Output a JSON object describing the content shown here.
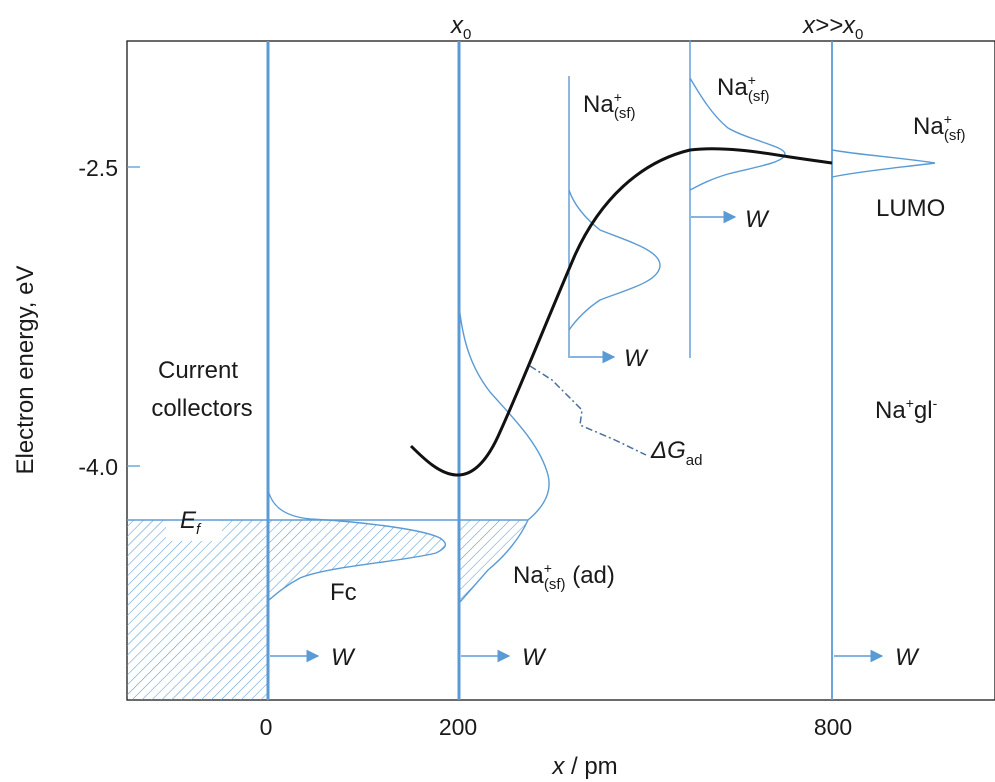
{
  "diagram": {
    "y_axis_label": "Electron energy, eV",
    "x_axis_label": {
      "main": "x",
      "rest": " / pm"
    },
    "y_ticks": [
      "-2.5",
      "-4.0"
    ],
    "x_ticks": [
      "0",
      "200",
      "800"
    ],
    "top_labels": {
      "x0": {
        "main": "x",
        "sub": "0"
      },
      "far": {
        "main": "x>>x",
        "sub": "0"
      }
    },
    "labels": {
      "current_collectors_line1": "Current",
      "current_collectors_line2": "collectors",
      "fermi": {
        "main": "E",
        "sub": "f"
      },
      "fc": "Fc",
      "na_ad": {
        "main": "Na",
        "sup": "+",
        "sub": "(sf)",
        "rest": " (ad)"
      },
      "na_sf_1": {
        "main": "Na",
        "sup": "+",
        "sub": "(sf)"
      },
      "na_sf_2": {
        "main": "Na",
        "sup": "+",
        "sub": "(sf)"
      },
      "na_sf_3": {
        "main": "Na",
        "sup": "+",
        "sub": "(sf)"
      },
      "lumo": "LUMO",
      "na_gl": {
        "main": "Na",
        "sup1": "+",
        "mid": "gl",
        "sup2": "-"
      },
      "delta_g": {
        "main": "ΔG",
        "sub": "ad"
      },
      "w": "W"
    },
    "colors": {
      "blue": "#5b9bd5",
      "curve": "#111111",
      "dash": "#4a6fa0"
    }
  }
}
